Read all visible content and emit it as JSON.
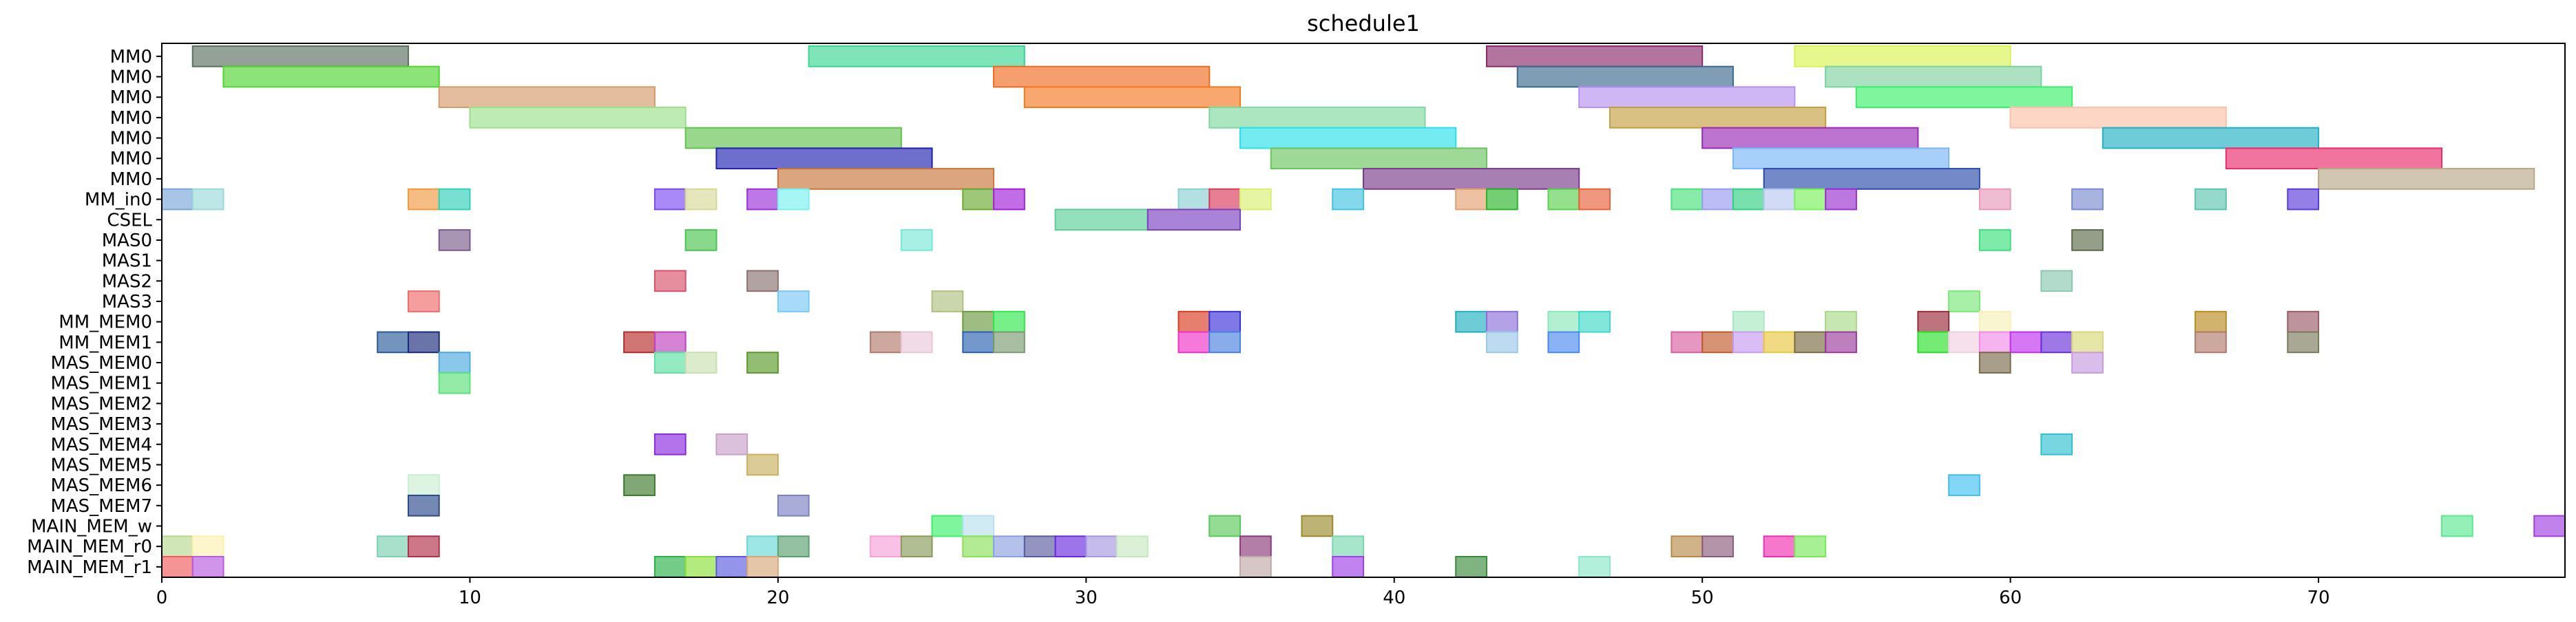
{
  "chart_data": {
    "type": "gantt",
    "title": "schedule1",
    "xlabel": "",
    "ylabel": "",
    "xlim": [
      0,
      78
    ],
    "xticks": [
      0,
      10,
      20,
      30,
      40,
      50,
      60,
      70
    ],
    "grid": false,
    "rows": [
      "MM0",
      "MM0",
      "MM0",
      "MM0",
      "MM0",
      "MM0",
      "MM0",
      "MM_in0",
      "CSEL",
      "MAS0",
      "MAS1",
      "MAS2",
      "MAS3",
      "MM_MEM0",
      "MM_MEM1",
      "MAS_MEM0",
      "MAS_MEM1",
      "MAS_MEM2",
      "MAS_MEM3",
      "MAS_MEM4",
      "MAS_MEM5",
      "MAS_MEM6",
      "MAS_MEM7",
      "MAIN_MEM_w",
      "MAIN_MEM_r0",
      "MAIN_MEM_r1"
    ],
    "tasks": [
      {
        "row": 0,
        "start": 1,
        "end": 8,
        "color": "#5a6f5e"
      },
      {
        "row": 0,
        "start": 21,
        "end": 28,
        "color": "#3ad690"
      },
      {
        "row": 0,
        "start": 43,
        "end": 50,
        "color": "#8b2a6a"
      },
      {
        "row": 0,
        "start": 53,
        "end": 60,
        "color": "#d8f250"
      },
      {
        "row": 1,
        "start": 2,
        "end": 9,
        "color": "#4fd630"
      },
      {
        "row": 1,
        "start": 27,
        "end": 34,
        "color": "#f06a20"
      },
      {
        "row": 1,
        "start": 44,
        "end": 51,
        "color": "#3a6a8e"
      },
      {
        "row": 1,
        "start": 54,
        "end": 61,
        "color": "#7ed2a0"
      },
      {
        "row": 2,
        "start": 9,
        "end": 16,
        "color": "#d49a6a"
      },
      {
        "row": 2,
        "start": 28,
        "end": 35,
        "color": "#f47a20"
      },
      {
        "row": 2,
        "start": 46,
        "end": 53,
        "color": "#b690f0"
      },
      {
        "row": 2,
        "start": 55,
        "end": 62,
        "color": "#3af06a"
      },
      {
        "row": 3,
        "start": 10,
        "end": 17,
        "color": "#9ae08a"
      },
      {
        "row": 3,
        "start": 34,
        "end": 41,
        "color": "#7ed8a0"
      },
      {
        "row": 3,
        "start": 47,
        "end": 54,
        "color": "#c49e40"
      },
      {
        "row": 3,
        "start": 60,
        "end": 67,
        "color": "#fcc0a8"
      },
      {
        "row": 4,
        "start": 17,
        "end": 24,
        "color": "#62c250"
      },
      {
        "row": 4,
        "start": 35,
        "end": 42,
        "color": "#2ae0ea"
      },
      {
        "row": 4,
        "start": 50,
        "end": 57,
        "color": "#9a2ab8"
      },
      {
        "row": 4,
        "start": 63,
        "end": 70,
        "color": "#20b0c4"
      },
      {
        "row": 5,
        "start": 18,
        "end": 25,
        "color": "#2020b0"
      },
      {
        "row": 5,
        "start": 36,
        "end": 43,
        "color": "#6ac460"
      },
      {
        "row": 5,
        "start": 51,
        "end": 58,
        "color": "#7ab6f8"
      },
      {
        "row": 5,
        "start": 67,
        "end": 74,
        "color": "#ea2a6a"
      },
      {
        "row": 6,
        "start": 20,
        "end": 27,
        "color": "#c8743a"
      },
      {
        "row": 6,
        "start": 39,
        "end": 46,
        "color": "#7a3a8a"
      },
      {
        "row": 6,
        "start": 52,
        "end": 59,
        "color": "#2a4aaa"
      },
      {
        "row": 6,
        "start": 70,
        "end": 77,
        "color": "#b8a888"
      },
      {
        "row": 7,
        "start": 0,
        "end": 1,
        "color": "#7aa4d8"
      },
      {
        "row": 7,
        "start": 1,
        "end": 2,
        "color": "#9ad8d8"
      },
      {
        "row": 7,
        "start": 8,
        "end": 9,
        "color": "#f09a40"
      },
      {
        "row": 7,
        "start": 9,
        "end": 10,
        "color": "#30d0b8"
      },
      {
        "row": 7,
        "start": 16,
        "end": 17,
        "color": "#7a4af0"
      },
      {
        "row": 7,
        "start": 17,
        "end": 18,
        "color": "#d8d898"
      },
      {
        "row": 7,
        "start": 19,
        "end": 20,
        "color": "#9a30d8"
      },
      {
        "row": 7,
        "start": 20,
        "end": 21,
        "color": "#7af0f0"
      },
      {
        "row": 7,
        "start": 26,
        "end": 27,
        "color": "#6aaa30"
      },
      {
        "row": 7,
        "start": 27,
        "end": 28,
        "color": "#a020d8"
      },
      {
        "row": 7,
        "start": 33,
        "end": 34,
        "color": "#8ad0d0"
      },
      {
        "row": 7,
        "start": 34,
        "end": 35,
        "color": "#d83a5a"
      },
      {
        "row": 7,
        "start": 35,
        "end": 36,
        "color": "#d8f070"
      },
      {
        "row": 7,
        "start": 38,
        "end": 39,
        "color": "#40c4e0"
      },
      {
        "row": 7,
        "start": 42,
        "end": 43,
        "color": "#e4a070"
      },
      {
        "row": 7,
        "start": 43,
        "end": 44,
        "color": "#2ab42a"
      },
      {
        "row": 7,
        "start": 45,
        "end": 46,
        "color": "#5ad050"
      },
      {
        "row": 7,
        "start": 46,
        "end": 47,
        "color": "#e8603a"
      },
      {
        "row": 7,
        "start": 49,
        "end": 50,
        "color": "#4ae07a"
      },
      {
        "row": 7,
        "start": 50,
        "end": 51,
        "color": "#9a9af0"
      },
      {
        "row": 7,
        "start": 51,
        "end": 52,
        "color": "#30d080"
      },
      {
        "row": 7,
        "start": 52,
        "end": 53,
        "color": "#b8c8f0"
      },
      {
        "row": 7,
        "start": 53,
        "end": 54,
        "color": "#7af05a"
      },
      {
        "row": 7,
        "start": 54,
        "end": 55,
        "color": "#9a30d0"
      },
      {
        "row": 7,
        "start": 59,
        "end": 60,
        "color": "#e898b8"
      },
      {
        "row": 7,
        "start": 62,
        "end": 63,
        "color": "#7a8ad0"
      },
      {
        "row": 7,
        "start": 66,
        "end": 67,
        "color": "#5ac4b0"
      },
      {
        "row": 7,
        "start": 69,
        "end": 70,
        "color": "#5a3ad8"
      },
      {
        "row": 8,
        "start": 29,
        "end": 32,
        "color": "#5ad098"
      },
      {
        "row": 8,
        "start": 32,
        "end": 35,
        "color": "#7a40c0"
      },
      {
        "row": 9,
        "start": 9,
        "end": 10,
        "color": "#7a5a8a"
      },
      {
        "row": 9,
        "start": 17,
        "end": 18,
        "color": "#4ac450"
      },
      {
        "row": 9,
        "start": 24,
        "end": 25,
        "color": "#7ae8d8"
      },
      {
        "row": 9,
        "start": 59,
        "end": 60,
        "color": "#3ae07a"
      },
      {
        "row": 9,
        "start": 62,
        "end": 63,
        "color": "#5a6a4a"
      },
      {
        "row": 11,
        "start": 16,
        "end": 17,
        "color": "#d8506a"
      },
      {
        "row": 11,
        "start": 19,
        "end": 20,
        "color": "#8a7070"
      },
      {
        "row": 11,
        "start": 61,
        "end": 62,
        "color": "#8ac8b0"
      },
      {
        "row": 12,
        "start": 8,
        "end": 9,
        "color": "#f06a6a"
      },
      {
        "row": 12,
        "start": 20,
        "end": 21,
        "color": "#7ac8f8"
      },
      {
        "row": 12,
        "start": 25,
        "end": 26,
        "color": "#b0c080"
      },
      {
        "row": 12,
        "start": 58,
        "end": 59,
        "color": "#7ae87a"
      },
      {
        "row": 13,
        "start": 26,
        "end": 27,
        "color": "#6a9a40"
      },
      {
        "row": 13,
        "start": 27,
        "end": 28,
        "color": "#30e84a"
      },
      {
        "row": 13,
        "start": 33,
        "end": 34,
        "color": "#d83a20"
      },
      {
        "row": 13,
        "start": 34,
        "end": 35,
        "color": "#3a30d8"
      },
      {
        "row": 13,
        "start": 42,
        "end": 43,
        "color": "#20b0c0"
      },
      {
        "row": 13,
        "start": 43,
        "end": 44,
        "color": "#8a70d8"
      },
      {
        "row": 13,
        "start": 45,
        "end": 46,
        "color": "#8ae8b8"
      },
      {
        "row": 13,
        "start": 46,
        "end": 47,
        "color": "#40d8c8"
      },
      {
        "row": 13,
        "start": 51,
        "end": 52,
        "color": "#a8e8c0"
      },
      {
        "row": 13,
        "start": 54,
        "end": 55,
        "color": "#a8d888"
      },
      {
        "row": 13,
        "start": 57,
        "end": 58,
        "color": "#9a2a3a"
      },
      {
        "row": 13,
        "start": 59,
        "end": 60,
        "color": "#f8f0b8"
      },
      {
        "row": 13,
        "start": 66,
        "end": 67,
        "color": "#b88a20"
      },
      {
        "row": 13,
        "start": 69,
        "end": 70,
        "color": "#9a5a6a"
      },
      {
        "row": 14,
        "start": 7,
        "end": 8,
        "color": "#2a5a9a"
      },
      {
        "row": 14,
        "start": 8,
        "end": 9,
        "color": "#1a2a7a"
      },
      {
        "row": 14,
        "start": 15,
        "end": 16,
        "color": "#b82a2a"
      },
      {
        "row": 14,
        "start": 16,
        "end": 17,
        "color": "#c040c0"
      },
      {
        "row": 14,
        "start": 23,
        "end": 24,
        "color": "#b07a6a"
      },
      {
        "row": 14,
        "start": 24,
        "end": 25,
        "color": "#e8c8d8"
      },
      {
        "row": 14,
        "start": 26,
        "end": 27,
        "color": "#2a60b0"
      },
      {
        "row": 14,
        "start": 27,
        "end": 28,
        "color": "#7a9a70"
      },
      {
        "row": 14,
        "start": 33,
        "end": 34,
        "color": "#f030c8"
      },
      {
        "row": 14,
        "start": 34,
        "end": 35,
        "color": "#4a80e0"
      },
      {
        "row": 14,
        "start": 43,
        "end": 44,
        "color": "#9ac8e8"
      },
      {
        "row": 14,
        "start": 45,
        "end": 46,
        "color": "#4a8af0"
      },
      {
        "row": 14,
        "start": 49,
        "end": 50,
        "color": "#d860a0"
      },
      {
        "row": 14,
        "start": 50,
        "end": 51,
        "color": "#c05a2a"
      },
      {
        "row": 14,
        "start": 51,
        "end": 52,
        "color": "#c89af0"
      },
      {
        "row": 14,
        "start": 52,
        "end": 53,
        "color": "#e8c840"
      },
      {
        "row": 14,
        "start": 53,
        "end": 54,
        "color": "#7a6a40"
      },
      {
        "row": 14,
        "start": 54,
        "end": 55,
        "color": "#9a3a9a"
      },
      {
        "row": 14,
        "start": 57,
        "end": 58,
        "color": "#2ae02a"
      },
      {
        "row": 14,
        "start": 58,
        "end": 59,
        "color": "#f0d0e0"
      },
      {
        "row": 14,
        "start": 59,
        "end": 60,
        "color": "#f08ae8"
      },
      {
        "row": 14,
        "start": 60,
        "end": 61,
        "color": "#c030f0"
      },
      {
        "row": 14,
        "start": 61,
        "end": 62,
        "color": "#6a30d8"
      },
      {
        "row": 14,
        "start": 62,
        "end": 63,
        "color": "#d8d878"
      },
      {
        "row": 14,
        "start": 66,
        "end": 67,
        "color": "#b07a6a"
      },
      {
        "row": 14,
        "start": 69,
        "end": 70,
        "color": "#7a7a5a"
      },
      {
        "row": 15,
        "start": 9,
        "end": 10,
        "color": "#4aaae0"
      },
      {
        "row": 15,
        "start": 16,
        "end": 17,
        "color": "#5ae0a0"
      },
      {
        "row": 15,
        "start": 17,
        "end": 18,
        "color": "#c8e0b0"
      },
      {
        "row": 15,
        "start": 19,
        "end": 20,
        "color": "#5a9a2a"
      },
      {
        "row": 15,
        "start": 59,
        "end": 60,
        "color": "#7a6a4a"
      },
      {
        "row": 15,
        "start": 62,
        "end": 63,
        "color": "#c89ae0"
      },
      {
        "row": 16,
        "start": 9,
        "end": 10,
        "color": "#5ae07a"
      },
      {
        "row": 19,
        "start": 16,
        "end": 17,
        "color": "#8a2ae0"
      },
      {
        "row": 19,
        "start": 18,
        "end": 19,
        "color": "#c8a0c8"
      },
      {
        "row": 19,
        "start": 61,
        "end": 62,
        "color": "#30c0d0"
      },
      {
        "row": 20,
        "start": 19,
        "end": 20,
        "color": "#c8b060"
      },
      {
        "row": 21,
        "start": 8,
        "end": 9,
        "color": "#c8f0d0"
      },
      {
        "row": 21,
        "start": 15,
        "end": 16,
        "color": "#3a7a2a"
      },
      {
        "row": 21,
        "start": 58,
        "end": 59,
        "color": "#40c0f0"
      },
      {
        "row": 22,
        "start": 8,
        "end": 9,
        "color": "#2a4a8a"
      },
      {
        "row": 22,
        "start": 20,
        "end": 21,
        "color": "#7a80c0"
      },
      {
        "row": 23,
        "start": 25,
        "end": 26,
        "color": "#3af06a"
      },
      {
        "row": 23,
        "start": 26,
        "end": 27,
        "color": "#b8e0f0"
      },
      {
        "row": 23,
        "start": 34,
        "end": 35,
        "color": "#5ac85a"
      },
      {
        "row": 23,
        "start": 37,
        "end": 38,
        "color": "#9a8a2a"
      },
      {
        "row": 23,
        "start": 74,
        "end": 75,
        "color": "#5ae890"
      },
      {
        "row": 23,
        "start": 77,
        "end": 78,
        "color": "#a040e0"
      },
      {
        "row": 24,
        "start": 0,
        "end": 1,
        "color": "#b8d890"
      },
      {
        "row": 24,
        "start": 1,
        "end": 2,
        "color": "#fcf0b0"
      },
      {
        "row": 24,
        "start": 7,
        "end": 8,
        "color": "#7ad0b0"
      },
      {
        "row": 24,
        "start": 8,
        "end": 9,
        "color": "#b0304a"
      },
      {
        "row": 24,
        "start": 19,
        "end": 20,
        "color": "#6ad8d8"
      },
      {
        "row": 24,
        "start": 20,
        "end": 21,
        "color": "#5aa070"
      },
      {
        "row": 24,
        "start": 23,
        "end": 24,
        "color": "#f8a0d8"
      },
      {
        "row": 24,
        "start": 24,
        "end": 25,
        "color": "#8a9a5a"
      },
      {
        "row": 24,
        "start": 26,
        "end": 27,
        "color": "#8ae05a"
      },
      {
        "row": 24,
        "start": 27,
        "end": 28,
        "color": "#8aa0e0"
      },
      {
        "row": 24,
        "start": 28,
        "end": 29,
        "color": "#5a5aa0"
      },
      {
        "row": 24,
        "start": 29,
        "end": 30,
        "color": "#6a2ae0"
      },
      {
        "row": 24,
        "start": 30,
        "end": 31,
        "color": "#a898e0"
      },
      {
        "row": 24,
        "start": 31,
        "end": 32,
        "color": "#c8e8c0"
      },
      {
        "row": 24,
        "start": 35,
        "end": 36,
        "color": "#8a3a7a"
      },
      {
        "row": 24,
        "start": 38,
        "end": 39,
        "color": "#7ad8b0"
      },
      {
        "row": 24,
        "start": 49,
        "end": 50,
        "color": "#b88a4a"
      },
      {
        "row": 24,
        "start": 50,
        "end": 51,
        "color": "#8a5a7a"
      },
      {
        "row": 24,
        "start": 52,
        "end": 53,
        "color": "#f030b0"
      },
      {
        "row": 24,
        "start": 53,
        "end": 54,
        "color": "#7ae85a"
      },
      {
        "row": 25,
        "start": 0,
        "end": 1,
        "color": "#f05a5a"
      },
      {
        "row": 25,
        "start": 1,
        "end": 2,
        "color": "#b85ae0"
      },
      {
        "row": 25,
        "start": 16,
        "end": 17,
        "color": "#2ab04a"
      },
      {
        "row": 25,
        "start": 17,
        "end": 18,
        "color": "#8ae03a"
      },
      {
        "row": 25,
        "start": 18,
        "end": 19,
        "color": "#5a5ae0"
      },
      {
        "row": 25,
        "start": 19,
        "end": 20,
        "color": "#d8a87a"
      },
      {
        "row": 25,
        "start": 35,
        "end": 36,
        "color": "#c0a8a8"
      },
      {
        "row": 25,
        "start": 38,
        "end": 39,
        "color": "#a040e8"
      },
      {
        "row": 25,
        "start": 42,
        "end": 43,
        "color": "#3a8a3a"
      },
      {
        "row": 25,
        "start": 46,
        "end": 47,
        "color": "#8ae8c8"
      }
    ]
  }
}
